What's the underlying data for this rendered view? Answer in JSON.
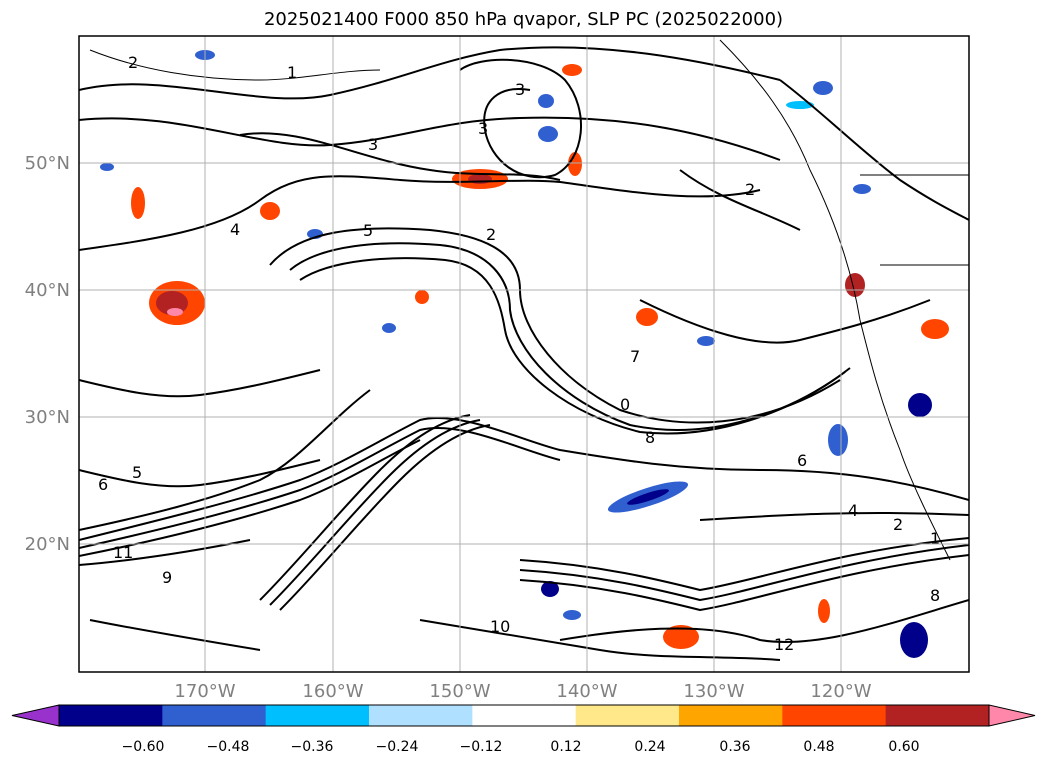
{
  "title": "2025021400 F000 850 hPa qvapor, SLP PC (2025022000)",
  "lat_labels": [
    "50°N",
    "40°N",
    "30°N",
    "20°N"
  ],
  "lon_labels": [
    "170°W",
    "160°W",
    "150°W",
    "140°W",
    "130°W",
    "120°W"
  ],
  "colorbar": {
    "ticks": [
      "−0.60",
      "−0.48",
      "−0.36",
      "−0.24",
      "−0.12",
      "0.12",
      "0.24",
      "0.36",
      "0.48",
      "0.60"
    ],
    "colors": [
      "#9932cc",
      "#00008b",
      "#3060d0",
      "#00bfff",
      "#b0e0ff",
      "#ffffff",
      "#ffe88a",
      "#ffa500",
      "#ff4500",
      "#b22222",
      "#ff88aa"
    ]
  },
  "contour_labels": [
    "2",
    "3",
    "1",
    "3",
    "3",
    "4",
    "2",
    "5",
    "2",
    "0",
    "7",
    "8",
    "6",
    "5",
    "4",
    "6",
    "2",
    "1",
    "8",
    "12",
    "10",
    "11",
    "9"
  ]
}
